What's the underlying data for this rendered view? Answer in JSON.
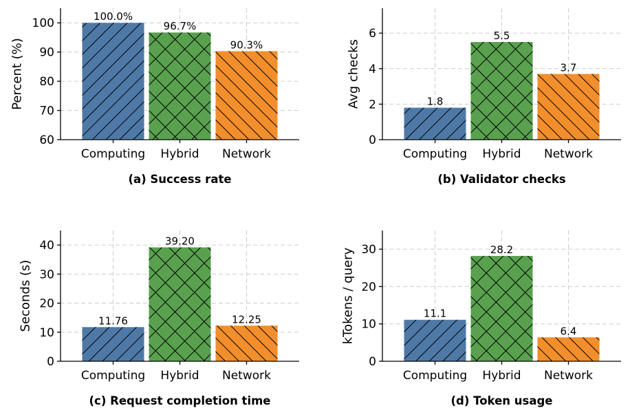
{
  "colors": {
    "Computing": "#4e79a7",
    "Hybrid": "#59a14f",
    "Network": "#f28e2b"
  },
  "chart_data": [
    {
      "type": "bar",
      "caption": "(a) Success rate",
      "ylabel": "Percent (%)",
      "categories": [
        "Computing",
        "Hybrid",
        "Network"
      ],
      "values": [
        100.0,
        96.7,
        90.3
      ],
      "value_labels": [
        "100.0%",
        "96.7%",
        "90.3%"
      ],
      "ylim": [
        60,
        105
      ],
      "yticks": [
        60,
        70,
        80,
        90,
        100
      ],
      "grid": true
    },
    {
      "type": "bar",
      "caption": "(b) Validator checks",
      "ylabel": "Avg checks",
      "categories": [
        "Computing",
        "Hybrid",
        "Network"
      ],
      "values": [
        1.8,
        5.5,
        3.7
      ],
      "value_labels": [
        "1.8",
        "5.5",
        "3.7"
      ],
      "ylim": [
        0,
        7.4
      ],
      "yticks": [
        0,
        2,
        4,
        6
      ],
      "grid": true
    },
    {
      "type": "bar",
      "caption": "(c) Request completion time",
      "ylabel": "Seconds (s)",
      "categories": [
        "Computing",
        "Hybrid",
        "Network"
      ],
      "values": [
        11.76,
        39.2,
        12.25
      ],
      "value_labels": [
        "11.76",
        "39.20",
        "12.25"
      ],
      "ylim": [
        0,
        45
      ],
      "yticks": [
        0,
        10,
        20,
        30,
        40
      ],
      "grid": true
    },
    {
      "type": "bar",
      "caption": "(d) Token usage",
      "ylabel": "kTokens / query",
      "categories": [
        "Computing",
        "Hybrid",
        "Network"
      ],
      "values": [
        11.1,
        28.2,
        6.4
      ],
      "value_labels": [
        "11.1",
        "28.2",
        "6.4"
      ],
      "ylim": [
        0,
        35
      ],
      "yticks": [
        0,
        10,
        20,
        30
      ],
      "grid": true
    }
  ]
}
